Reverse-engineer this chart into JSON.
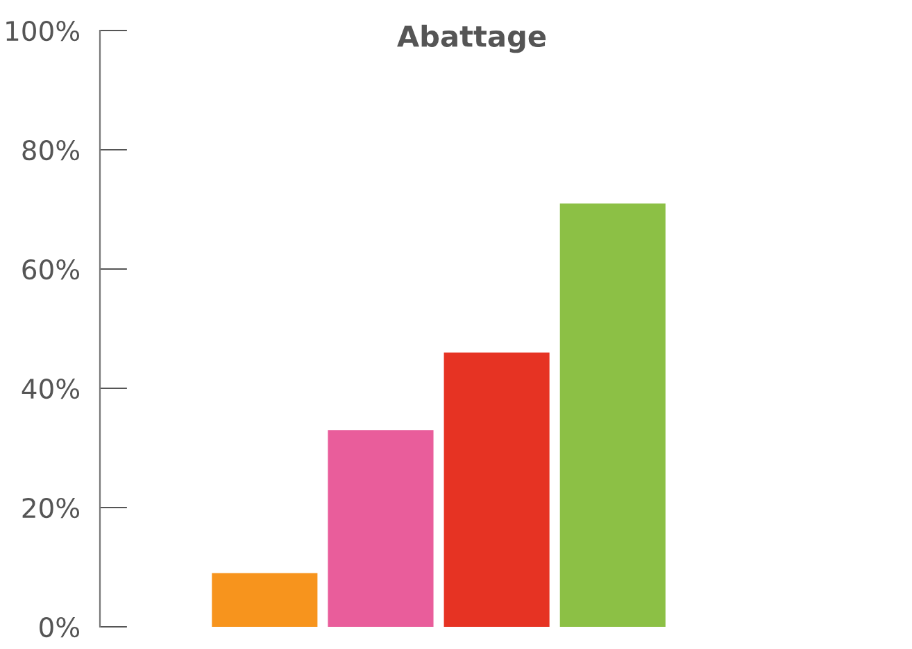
{
  "chart_data": {
    "type": "bar",
    "title": "Abattage",
    "categories": [
      null,
      null,
      null,
      null
    ],
    "values": [
      9,
      33,
      46,
      71
    ],
    "colors": [
      "#f7941d",
      "#e95d9b",
      "#e63323",
      "#8cc045"
    ],
    "ylim": [
      0,
      100
    ],
    "yticks": [
      {
        "value": 0,
        "label": "0%"
      },
      {
        "value": 20,
        "label": "20%"
      },
      {
        "value": 40,
        "label": "40%"
      },
      {
        "value": 60,
        "label": "60%"
      },
      {
        "value": 80,
        "label": "80%"
      },
      {
        "value": 100,
        "label": "100%"
      }
    ],
    "grid": false
  }
}
